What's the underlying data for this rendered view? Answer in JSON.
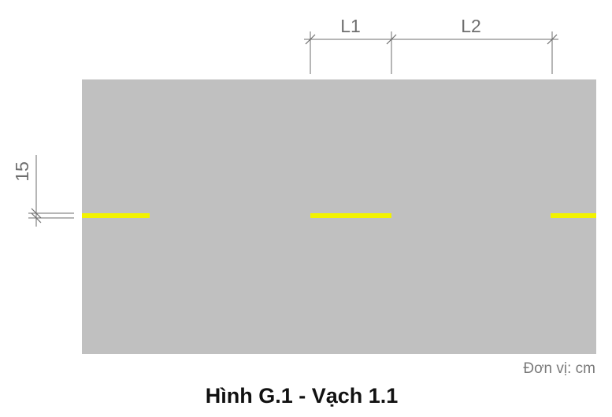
{
  "dimensions": {
    "l1_label": "L1",
    "l2_label": "L2",
    "width_label": "15"
  },
  "unit_note": "Đơn vị: cm",
  "caption": "Hình G.1 - Vạch 1.1",
  "colors": {
    "road_surface": "#c0c0c0",
    "marking": "#f2f200",
    "dimension_line": "#6e6e6e",
    "caption": "#111111"
  }
}
